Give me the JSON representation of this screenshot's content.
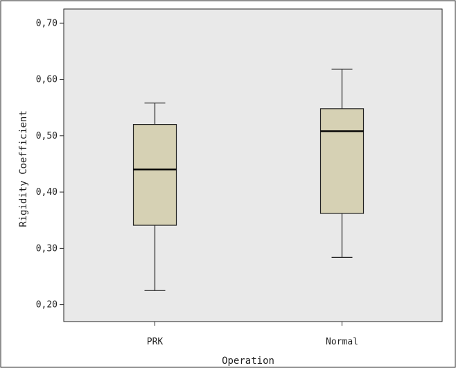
{
  "chart_data": {
    "type": "box",
    "title": "",
    "xlabel": "Operation",
    "ylabel": "Rigidity Coefficient",
    "categories": [
      "PRK",
      "Normal"
    ],
    "ylim": [
      0.17,
      0.725
    ],
    "yticks": [
      0.2,
      0.3,
      0.4,
      0.5,
      0.6,
      0.7
    ],
    "ytick_labels": [
      "0,20",
      "0,30",
      "0,40",
      "0,50",
      "0,60",
      "0,70"
    ],
    "boxes": [
      {
        "category": "PRK",
        "min": 0.225,
        "q1": 0.341,
        "median": 0.44,
        "q3": 0.52,
        "max": 0.558
      },
      {
        "category": "Normal",
        "min": 0.284,
        "q1": 0.362,
        "median": 0.508,
        "q3": 0.548,
        "max": 0.618
      }
    ],
    "grid": false,
    "legend": "none"
  },
  "colors": {
    "page_background": "#ffffff",
    "plot_background": "#e9e9e9",
    "box_fill": "#d6d1b4",
    "stroke": "#222222"
  }
}
